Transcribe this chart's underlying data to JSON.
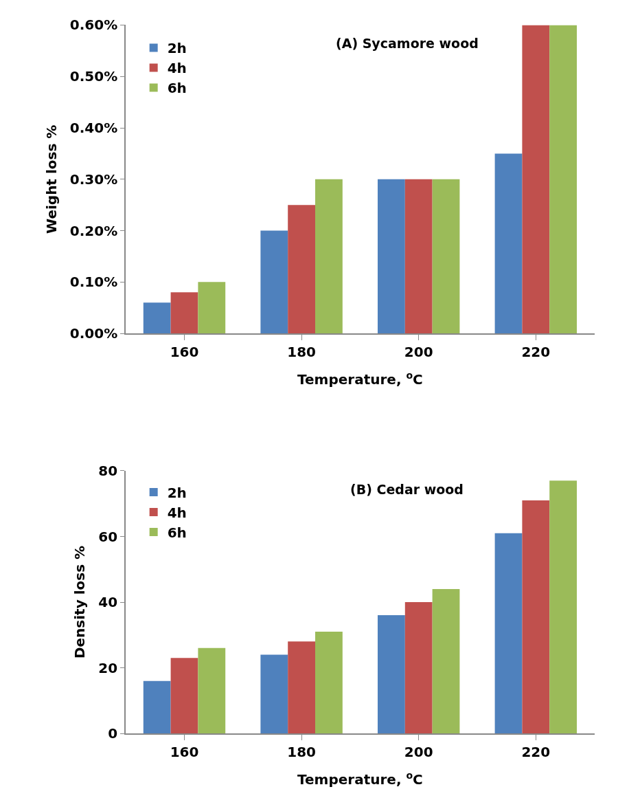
{
  "chart_data": [
    {
      "type": "bar",
      "title": "(A) Sycamore wood",
      "xlabel": "Temperature, $^{o}$C",
      "ylabel": "Weight loss %",
      "categories": [
        "160",
        "180",
        "200",
        "220"
      ],
      "series": [
        {
          "name": "2h",
          "color": "#4f81bd",
          "values": [
            0.06,
            0.2,
            0.3,
            0.35
          ]
        },
        {
          "name": "4h",
          "color": "#c0504d",
          "values": [
            0.08,
            0.25,
            0.3,
            0.6
          ]
        },
        {
          "name": "6h",
          "color": "#9bbb59",
          "values": [
            0.1,
            0.3,
            0.3,
            0.6
          ]
        }
      ],
      "ylim": [
        0,
        0.6
      ],
      "yticks": [
        {
          "value": 0,
          "label": "0.00%"
        },
        {
          "value": 0.1,
          "label": "0.10%"
        },
        {
          "value": 0.2,
          "label": "0.20%"
        },
        {
          "value": 0.3,
          "label": "0.30%"
        },
        {
          "value": 0.4,
          "label": "0.40%"
        },
        {
          "value": 0.5,
          "label": "0.50%"
        },
        {
          "value": 0.6,
          "label": "0.60%"
        }
      ],
      "legend": "top left"
    },
    {
      "type": "bar",
      "title": "(B) Cedar wood",
      "xlabel": "Temperature, $^{o}$C",
      "ylabel": "Density loss %",
      "categories": [
        "160",
        "180",
        "200",
        "220"
      ],
      "series": [
        {
          "name": "2h",
          "color": "#4f81bd",
          "values": [
            16,
            24,
            36,
            61
          ]
        },
        {
          "name": "4h",
          "color": "#c0504d",
          "values": [
            23,
            28,
            40,
            71
          ]
        },
        {
          "name": "6h",
          "color": "#9bbb59",
          "values": [
            26,
            31,
            44,
            77
          ]
        }
      ],
      "ylim": [
        0,
        80
      ],
      "yticks": [
        0,
        20,
        40,
        60,
        80
      ],
      "legend": "top left"
    }
  ]
}
